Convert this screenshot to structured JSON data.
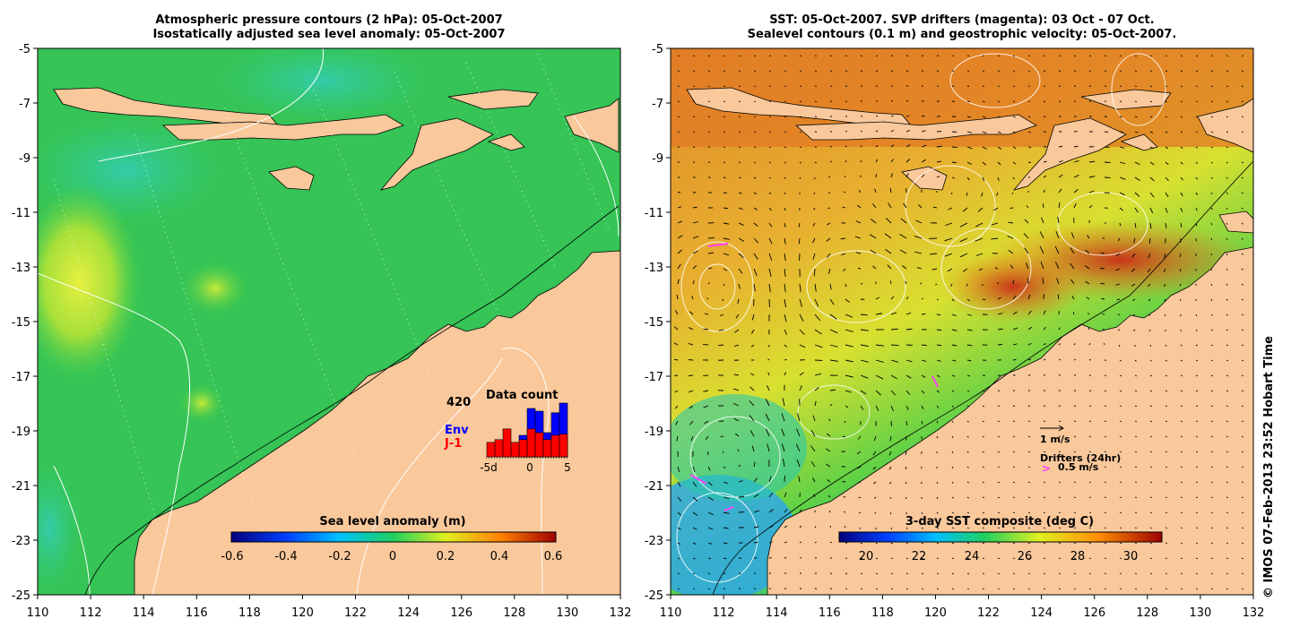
{
  "left_map": {
    "title_line1": "Atmospheric pressure contours (2 hPa): 05-Oct-2007",
    "title_line2": "Isostatically adjusted sea level anomaly: 05-Oct-2007",
    "colorbar_label": "Sea level anomaly (m)",
    "colorbar_ticks": [
      "-0.6",
      "-0.4",
      "-0.2",
      "0",
      "0.2",
      "0.4",
      "0.6"
    ],
    "data_count": {
      "title": "Data count",
      "max_label": "420",
      "env_label": "Env",
      "j1_label": "J-1",
      "xticks": [
        "-5d",
        "0",
        "5"
      ],
      "env_color": "#0000ff",
      "j1_color": "#ff0000",
      "env_fraction": [
        0,
        0,
        0,
        0,
        0.4,
        0.9,
        0.85,
        0.45,
        0.82,
        1.0
      ],
      "j1_fraction": [
        0.27,
        0.32,
        0.52,
        0.27,
        0.32,
        0.52,
        0.45,
        0.32,
        0.4,
        0.42
      ]
    }
  },
  "right_map": {
    "title_line1": "SST: 05-Oct-2007. SVP drifters (magenta): 03 Oct - 07 Oct.",
    "title_line2": "Sealevel contours (0.1 m) and geostrophic velocity: 05-Oct-2007.",
    "colorbar_label": "3-day SST composite (deg C)",
    "colorbar_ticks": [
      "20",
      "22",
      "24",
      "26",
      "28",
      "30"
    ],
    "velocity_scale_label": "1 m/s",
    "drifters_label": "Drifters (24hr)",
    "drifters_scale_label": "0.5 m/s",
    "drifter_color": "#ff44ff"
  },
  "axes": {
    "lat_ticks": [
      "-5",
      "-7",
      "-9",
      "-11",
      "-13",
      "-15",
      "-17",
      "-19",
      "-21",
      "-23",
      "-25"
    ],
    "lon_ticks": [
      "110",
      "112",
      "114",
      "116",
      "118",
      "120",
      "122",
      "124",
      "126",
      "128",
      "130",
      "132"
    ]
  },
  "credit": "© IMOS 07-Feb-2013 23:52 Hobart Time",
  "colors": {
    "land": "#f9c89b",
    "sea_green": "#33cc55"
  }
}
